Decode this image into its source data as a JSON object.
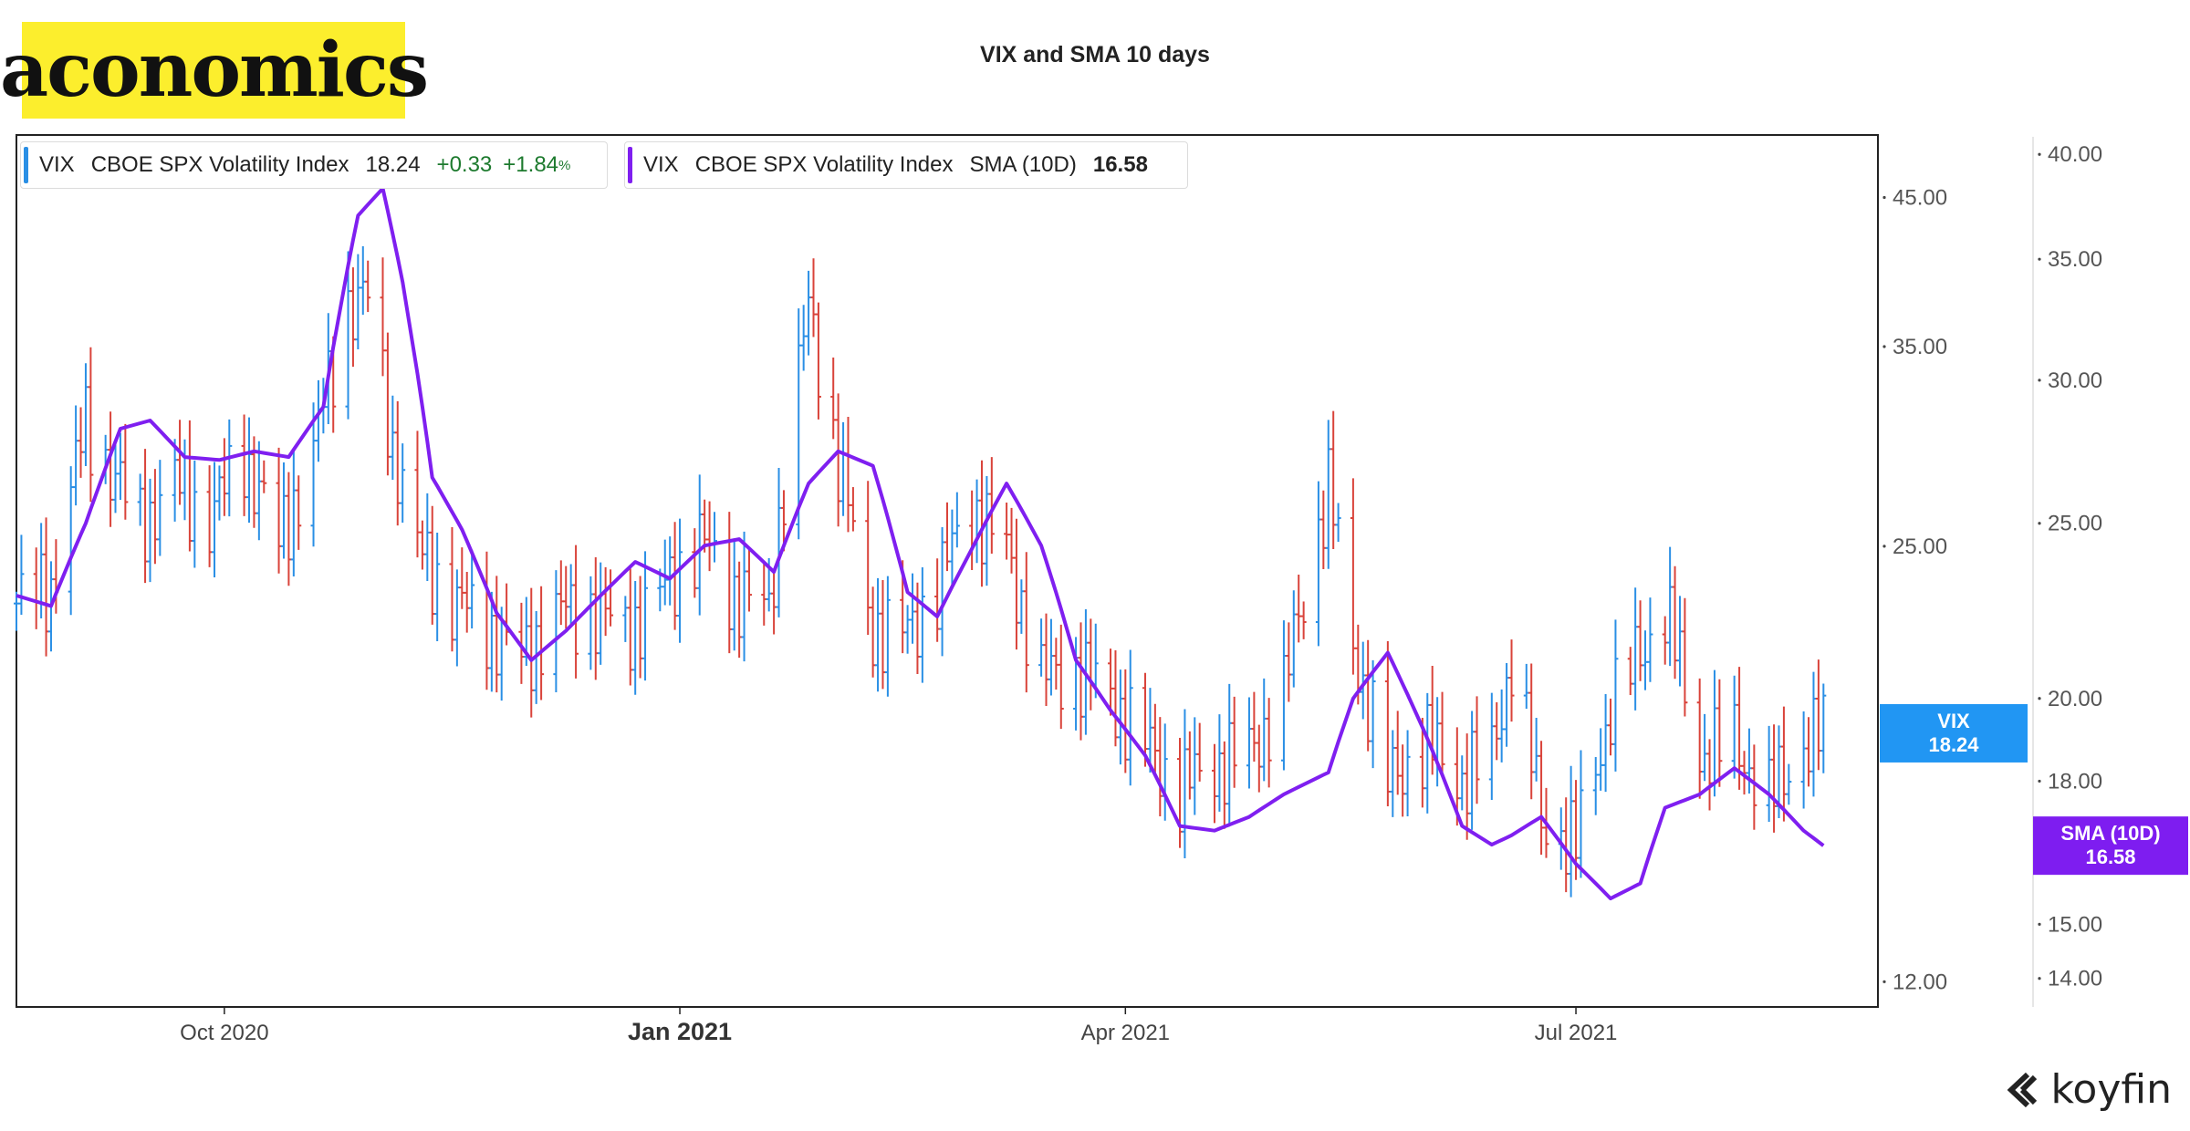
{
  "brand": {
    "logo_text": "aconomics"
  },
  "legend": {
    "vix": {
      "symbol": "VIX",
      "name": "CBOE SPX Volatility Index",
      "value": "18.24",
      "change": "+0.33",
      "change_pct": "+1.84",
      "pct_unit": "%"
    },
    "sma": {
      "symbol": "VIX",
      "name": "CBOE SPX Volatility Index",
      "indicator": "SMA (10D)",
      "value": "16.58"
    }
  },
  "watermark": {
    "text": "koyfin"
  },
  "colors": {
    "up": "#2a8fe5",
    "down": "#d9433a",
    "sma": "#7f1ff0",
    "tag_vix": "#2196f3",
    "tag_sma": "#7e1df0"
  },
  "chart_data": {
    "type": "line",
    "title": "VIX and SMA 10 days",
    "x_ticks": [
      {
        "label": "Oct 2020",
        "date": "2020-10-01"
      },
      {
        "label": "Jan 2021",
        "date": "2021-01-01"
      },
      {
        "label": "Apr 2021",
        "date": "2021-04-01"
      },
      {
        "label": "Jul 2021",
        "date": "2021-07-01"
      }
    ],
    "x_range": [
      "2020-08-20",
      "2021-08-31"
    ],
    "left_axis": {
      "scale": "log",
      "range": [
        11.5,
        50
      ],
      "ticks": [
        "45.00",
        "35.00",
        "25.00",
        "12.00"
      ]
    },
    "right_axis": {
      "scale": "log",
      "range": [
        13.5,
        41
      ],
      "ticks": [
        "40.00",
        "35.00",
        "30.00",
        "25.00",
        "20.00",
        "18.00",
        "15.00",
        "14.00"
      ]
    },
    "series": [
      {
        "name": "VIX",
        "style": "ohlc-bars",
        "approx_close": [
          [
            "2020-08-20",
            22.7
          ],
          [
            "2020-08-27",
            23.3
          ],
          [
            "2020-09-03",
            30.7
          ],
          [
            "2020-09-08",
            28.5
          ],
          [
            "2020-09-14",
            25.9
          ],
          [
            "2020-09-21",
            27.8
          ],
          [
            "2020-09-28",
            26.2
          ],
          [
            "2020-10-05",
            29.2
          ],
          [
            "2020-10-12",
            25.1
          ],
          [
            "2020-10-19",
            29.3
          ],
          [
            "2020-10-26",
            37.6
          ],
          [
            "2020-10-30",
            38.0
          ],
          [
            "2020-11-04",
            29.6
          ],
          [
            "2020-11-09",
            24.9
          ],
          [
            "2020-11-16",
            22.8
          ],
          [
            "2020-11-23",
            21.9
          ],
          [
            "2020-11-30",
            20.6
          ],
          [
            "2020-12-07",
            22.3
          ],
          [
            "2020-12-14",
            22.5
          ],
          [
            "2020-12-21",
            21.6
          ],
          [
            "2020-12-28",
            23.0
          ],
          [
            "2021-01-05",
            25.3
          ],
          [
            "2021-01-11",
            23.3
          ],
          [
            "2021-01-19",
            22.3
          ],
          [
            "2021-01-27",
            37.2
          ],
          [
            "2021-02-01",
            30.2
          ],
          [
            "2021-02-08",
            21.9
          ],
          [
            "2021-02-16",
            21.5
          ],
          [
            "2021-02-22",
            23.4
          ],
          [
            "2021-03-01",
            26.7
          ],
          [
            "2021-03-08",
            24.7
          ],
          [
            "2021-03-15",
            20.0
          ],
          [
            "2021-03-22",
            20.3
          ],
          [
            "2021-03-29",
            19.4
          ],
          [
            "2021-04-05",
            17.9
          ],
          [
            "2021-04-12",
            16.6
          ],
          [
            "2021-04-19",
            17.3
          ],
          [
            "2021-04-26",
            17.6
          ],
          [
            "2021-05-03",
            19.5
          ],
          [
            "2021-05-12",
            27.6
          ],
          [
            "2021-05-17",
            21.1
          ],
          [
            "2021-05-24",
            16.8
          ],
          [
            "2021-06-01",
            17.9
          ],
          [
            "2021-06-08",
            16.9
          ],
          [
            "2021-06-14",
            17.5
          ],
          [
            "2021-06-18",
            20.7
          ],
          [
            "2021-06-24",
            15.8
          ],
          [
            "2021-07-01",
            15.1
          ],
          [
            "2021-07-08",
            19.0
          ],
          [
            "2021-07-19",
            22.5
          ],
          [
            "2021-07-26",
            17.6
          ],
          [
            "2021-08-02",
            18.0
          ],
          [
            "2021-08-09",
            16.3
          ],
          [
            "2021-08-16",
            17.9
          ],
          [
            "2021-08-20",
            18.24
          ]
        ]
      },
      {
        "name": "VIX SMA (10D)",
        "style": "line",
        "values": [
          [
            "2020-08-20",
            22.8
          ],
          [
            "2020-08-27",
            22.5
          ],
          [
            "2020-09-03",
            25.0
          ],
          [
            "2020-09-10",
            28.2
          ],
          [
            "2020-09-16",
            28.5
          ],
          [
            "2020-09-23",
            27.2
          ],
          [
            "2020-09-30",
            27.1
          ],
          [
            "2020-10-07",
            27.4
          ],
          [
            "2020-10-14",
            27.2
          ],
          [
            "2020-10-21",
            29.0
          ],
          [
            "2020-10-28",
            37.0
          ],
          [
            "2020-11-02",
            38.3
          ],
          [
            "2020-11-06",
            34.0
          ],
          [
            "2020-11-12",
            26.5
          ],
          [
            "2020-11-18",
            24.8
          ],
          [
            "2020-11-25",
            22.3
          ],
          [
            "2020-12-02",
            21.0
          ],
          [
            "2020-12-09",
            21.8
          ],
          [
            "2020-12-16",
            22.8
          ],
          [
            "2020-12-23",
            23.8
          ],
          [
            "2020-12-30",
            23.3
          ],
          [
            "2021-01-06",
            24.3
          ],
          [
            "2021-01-13",
            24.5
          ],
          [
            "2021-01-20",
            23.5
          ],
          [
            "2021-01-27",
            26.3
          ],
          [
            "2021-02-02",
            27.4
          ],
          [
            "2021-02-09",
            26.9
          ],
          [
            "2021-02-16",
            22.9
          ],
          [
            "2021-02-22",
            22.2
          ],
          [
            "2021-03-01",
            24.2
          ],
          [
            "2021-03-08",
            26.3
          ],
          [
            "2021-03-15",
            24.3
          ],
          [
            "2021-03-22",
            21.0
          ],
          [
            "2021-03-29",
            19.7
          ],
          [
            "2021-04-05",
            18.6
          ],
          [
            "2021-04-12",
            17.0
          ],
          [
            "2021-04-19",
            16.9
          ],
          [
            "2021-04-26",
            17.2
          ],
          [
            "2021-05-03",
            17.7
          ],
          [
            "2021-05-12",
            18.2
          ],
          [
            "2021-05-17",
            20.0
          ],
          [
            "2021-05-24",
            21.2
          ],
          [
            "2021-06-01",
            19.0
          ],
          [
            "2021-06-08",
            17.0
          ],
          [
            "2021-06-14",
            16.6
          ],
          [
            "2021-06-18",
            16.8
          ],
          [
            "2021-06-24",
            17.2
          ],
          [
            "2021-07-01",
            16.2
          ],
          [
            "2021-07-08",
            15.5
          ],
          [
            "2021-07-14",
            15.8
          ],
          [
            "2021-07-19",
            17.4
          ],
          [
            "2021-07-26",
            17.7
          ],
          [
            "2021-08-02",
            18.3
          ],
          [
            "2021-08-09",
            17.7
          ],
          [
            "2021-08-16",
            16.9
          ],
          [
            "2021-08-20",
            16.58
          ]
        ]
      }
    ],
    "last_value_tags": [
      {
        "label": "VIX",
        "value": "18.24"
      },
      {
        "label": "SMA (10D)",
        "value": "16.58"
      }
    ]
  }
}
